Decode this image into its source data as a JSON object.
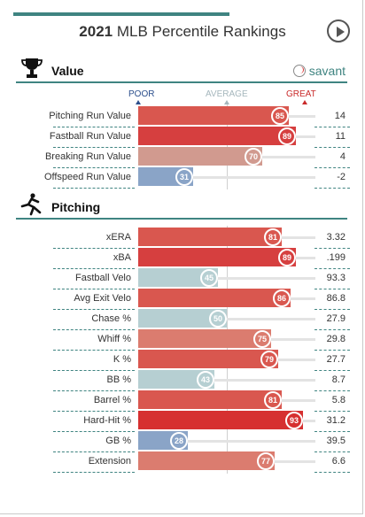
{
  "header": {
    "title_bold": "2021",
    "title_rest": " MLB Percentile Rankings",
    "play_icon": "play-icon"
  },
  "value_section": {
    "label": "Value",
    "icon": "trophy-icon",
    "brand": "savant"
  },
  "scale": {
    "poor": "POOR",
    "average": "AVERAGE",
    "great": "GREAT",
    "poor_color": "#2c4f8c",
    "average_color": "#a6b7bd",
    "great_color": "#c92a2a"
  },
  "value_rows": [
    {
      "name": "Pitching Run Value",
      "pct": 85,
      "val": "14",
      "color": "#d9574f"
    },
    {
      "name": "Fastball Run Value",
      "pct": 89,
      "val": "11",
      "color": "#d63f3f"
    },
    {
      "name": "Breaking Run Value",
      "pct": 70,
      "val": "4",
      "color": "#d19a8f"
    },
    {
      "name": "Offspeed Run Value",
      "pct": 31,
      "val": "-2",
      "color": "#8aa4c7"
    }
  ],
  "pitching_section": {
    "label": "Pitching",
    "icon": "pitcher-icon"
  },
  "pitching_rows": [
    {
      "name": "xERA",
      "pct": 81,
      "val": "3.32",
      "color": "#d9574f"
    },
    {
      "name": "xBA",
      "pct": 89,
      "val": ".199",
      "color": "#d63f3f"
    },
    {
      "name": "Fastball Velo",
      "pct": 45,
      "val": "93.3",
      "color": "#b6cfd2"
    },
    {
      "name": "Avg Exit Velo",
      "pct": 86,
      "val": "86.8",
      "color": "#d9574f"
    },
    {
      "name": "Chase %",
      "pct": 50,
      "val": "27.9",
      "color": "#b6cfd2"
    },
    {
      "name": "Whiff %",
      "pct": 75,
      "val": "29.8",
      "color": "#db7c6f"
    },
    {
      "name": "K %",
      "pct": 79,
      "val": "27.7",
      "color": "#d9574f"
    },
    {
      "name": "BB %",
      "pct": 43,
      "val": "8.7",
      "color": "#b6cfd2"
    },
    {
      "name": "Barrel %",
      "pct": 81,
      "val": "5.8",
      "color": "#d9574f"
    },
    {
      "name": "Hard-Hit %",
      "pct": 93,
      "val": "31.2",
      "color": "#d63030"
    },
    {
      "name": "GB %",
      "pct": 28,
      "val": "39.5",
      "color": "#8aa4c7"
    },
    {
      "name": "Extension",
      "pct": 77,
      "val": "6.6",
      "color": "#db7c6f"
    }
  ]
}
